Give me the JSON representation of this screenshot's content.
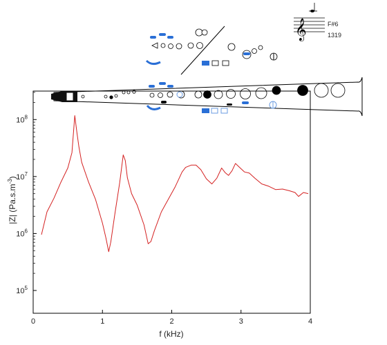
{
  "chart_data": {
    "type": "line",
    "xlabel": "f (kHz)",
    "ylabel_base": "|Z| (Pa.s.m",
    "ylabel_sup": "-3",
    "ylabel_end": ")",
    "xlim": [
      0,
      4
    ],
    "ylim_log10": [
      4.6,
      8.5
    ],
    "x_ticks": [
      0,
      1,
      2,
      3,
      4
    ],
    "x_tick_labels": [
      "0",
      "1",
      "2",
      "3",
      "4"
    ],
    "y_ticks_log10": [
      5,
      6,
      7,
      8
    ],
    "y_tick_base": "10",
    "y_tick_exponents": [
      "5",
      "6",
      "7",
      "8"
    ],
    "grid": false,
    "series": [
      {
        "color": "#d42020",
        "x": [
          0.12,
          0.2,
          0.3,
          0.4,
          0.5,
          0.56,
          0.6,
          0.63,
          0.66,
          0.7,
          0.8,
          0.9,
          1.0,
          1.05,
          1.09,
          1.12,
          1.18,
          1.25,
          1.3,
          1.33,
          1.36,
          1.42,
          1.5,
          1.6,
          1.66,
          1.7,
          1.75,
          1.85,
          1.95,
          2.05,
          2.15,
          2.2,
          2.28,
          2.35,
          2.42,
          2.5,
          2.58,
          2.65,
          2.72,
          2.77,
          2.82,
          2.87,
          2.92,
          2.98,
          3.05,
          3.12,
          3.2,
          3.3,
          3.4,
          3.5,
          3.6,
          3.7,
          3.78,
          3.83,
          3.9,
          3.97
        ],
        "log10_z": [
          5.98,
          6.38,
          6.62,
          6.9,
          7.15,
          7.42,
          8.07,
          7.78,
          7.52,
          7.25,
          6.9,
          6.6,
          6.18,
          5.92,
          5.68,
          5.85,
          6.35,
          6.9,
          7.38,
          7.28,
          6.98,
          6.7,
          6.5,
          6.15,
          5.82,
          5.86,
          6.05,
          6.38,
          6.6,
          6.82,
          7.08,
          7.16,
          7.2,
          7.2,
          7.12,
          6.96,
          6.87,
          6.97,
          7.15,
          7.07,
          7.02,
          7.1,
          7.23,
          7.16,
          7.08,
          7.06,
          6.97,
          6.87,
          6.83,
          6.77,
          6.78,
          6.75,
          6.72,
          6.65,
          6.72,
          6.7
        ]
      }
    ]
  },
  "note_panel": {
    "note_name": "F#6",
    "frequency_hz": "1319"
  }
}
